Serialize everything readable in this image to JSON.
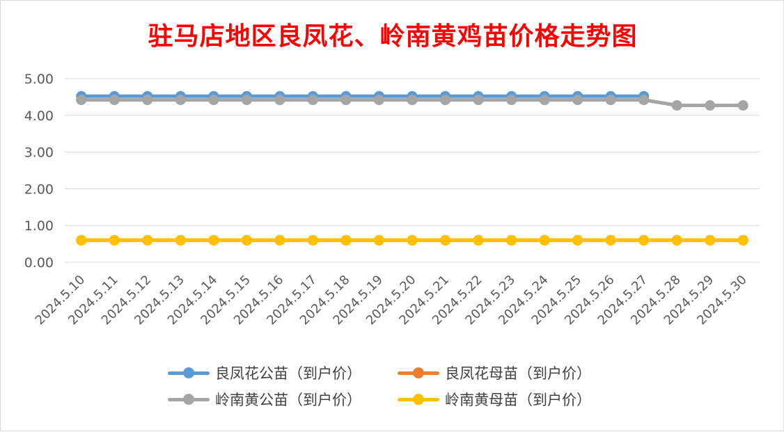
{
  "chart_data": {
    "type": "line",
    "title": "驻马店地区良凤花、岭南黄鸡苗价格走势图",
    "xlabel": "",
    "ylabel": "",
    "categories": [
      "2024.5.10",
      "2024.5.11",
      "2024.5.12",
      "2024.5.13",
      "2024.5.14",
      "2024.5.15",
      "2024.5.16",
      "2024.5.17",
      "2024.5.18",
      "2024.5.19",
      "2024.5.20",
      "2024.5.21",
      "2024.5.22",
      "2024.5.23",
      "2024.5.24",
      "2024.5.25",
      "2024.5.26",
      "2024.5.27",
      "2024.5.28",
      "2024.5.29",
      "2024.5.30"
    ],
    "ylim": [
      0,
      5
    ],
    "yticks": [
      "0.00",
      "1.00",
      "2.00",
      "3.00",
      "4.00",
      "5.00"
    ],
    "grid": true,
    "legend_position": "bottom",
    "series": [
      {
        "name": "良凤花公苗（到户价）",
        "color": "#5b9bd5",
        "values": [
          4.52,
          4.52,
          4.52,
          4.52,
          4.52,
          4.52,
          4.52,
          4.52,
          4.52,
          4.52,
          4.52,
          4.52,
          4.52,
          4.52,
          4.52,
          4.52,
          4.52,
          4.52,
          null,
          null,
          null
        ]
      },
      {
        "name": "良凤花母苗（到户价）",
        "color": "#ed7d31",
        "values": [
          0.6,
          0.6,
          0.6,
          0.6,
          0.6,
          0.6,
          0.6,
          0.6,
          0.6,
          0.6,
          0.6,
          0.6,
          0.6,
          0.6,
          0.6,
          0.6,
          0.6,
          0.6,
          0.6,
          0.6,
          0.6
        ]
      },
      {
        "name": "岭南黄公苗（到户价）",
        "color": "#a5a5a5",
        "values": [
          4.42,
          4.42,
          4.42,
          4.42,
          4.42,
          4.42,
          4.42,
          4.42,
          4.42,
          4.42,
          4.42,
          4.42,
          4.42,
          4.42,
          4.42,
          4.42,
          4.42,
          4.42,
          4.27,
          4.27,
          4.27
        ]
      },
      {
        "name": "岭南黄母苗（到户价）",
        "color": "#ffc000",
        "values": [
          0.6,
          0.6,
          0.6,
          0.6,
          0.6,
          0.6,
          0.6,
          0.6,
          0.6,
          0.6,
          0.6,
          0.6,
          0.6,
          0.6,
          0.6,
          0.6,
          0.6,
          0.6,
          0.6,
          0.6,
          0.6
        ]
      }
    ]
  }
}
